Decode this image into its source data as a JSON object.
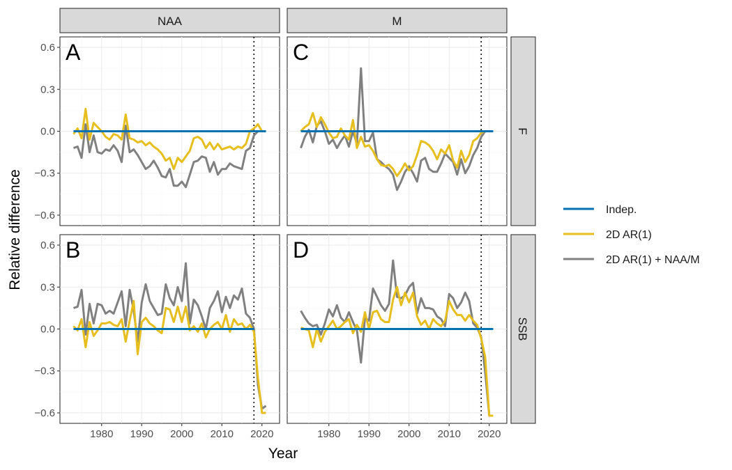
{
  "chart_data": {
    "type": "line",
    "xlabel": "Year",
    "ylabel": "Relative difference",
    "xlim": [
      1971,
      2023
    ],
    "ylim": [
      -0.62,
      0.62
    ],
    "x_ticks": [
      1980,
      1990,
      2000,
      2010,
      2020
    ],
    "y_ticks": [
      -0.6,
      -0.3,
      0.0,
      0.3,
      0.6
    ],
    "y_tick_labels": [
      "−0.6",
      "−0.3",
      "0.0",
      "0.3",
      "0.6"
    ],
    "grid": true,
    "reference_year": 2018,
    "column_strips": [
      "NAA",
      "M"
    ],
    "row_strips": [
      "F",
      "SSB"
    ],
    "legend": {
      "position": "right"
    },
    "series_meta": [
      {
        "name": "Indep.",
        "color": "#0072B2"
      },
      {
        "name": "2D AR(1)",
        "color": "#E6BE1E"
      },
      {
        "name": "2D AR(1) + NAA/M",
        "color": "#808080"
      }
    ],
    "panels": [
      {
        "label": "A",
        "column": "NAA",
        "row": "F",
        "series": [
          {
            "name": "Indep.",
            "x": [
              1973,
              2021
            ],
            "y": [
              0,
              0
            ]
          },
          {
            "name": "2D AR(1)",
            "x": [
              1973,
              1974,
              1975,
              1976,
              1977,
              1978,
              1979,
              1980,
              1981,
              1982,
              1983,
              1984,
              1985,
              1986,
              1987,
              1988,
              1989,
              1990,
              1991,
              1992,
              1993,
              1994,
              1995,
              1996,
              1997,
              1998,
              1999,
              2000,
              2001,
              2002,
              2003,
              2004,
              2005,
              2006,
              2007,
              2008,
              2009,
              2010,
              2011,
              2012,
              2013,
              2014,
              2015,
              2016,
              2017,
              2018,
              2019,
              2020,
              2021
            ],
            "y": [
              -0.02,
              0.02,
              -0.05,
              0.16,
              -0.06,
              0.06,
              0.03,
              0.0,
              -0.04,
              -0.06,
              -0.02,
              -0.03,
              -0.06,
              0.12,
              -0.05,
              -0.06,
              -0.08,
              -0.07,
              -0.1,
              -0.08,
              -0.11,
              -0.13,
              -0.16,
              -0.21,
              -0.19,
              -0.27,
              -0.19,
              -0.22,
              -0.18,
              -0.14,
              -0.05,
              -0.04,
              -0.06,
              -0.12,
              -0.08,
              -0.13,
              -0.09,
              -0.13,
              -0.12,
              -0.11,
              -0.13,
              -0.11,
              -0.12,
              -0.09,
              0.0,
              0.02,
              0.05,
              0.0,
              0.0
            ]
          },
          {
            "name": "2D AR(1) + NAA/M",
            "x": [
              1973,
              1974,
              1975,
              1976,
              1977,
              1978,
              1979,
              1980,
              1981,
              1982,
              1983,
              1984,
              1985,
              1986,
              1987,
              1988,
              1989,
              1990,
              1991,
              1992,
              1993,
              1994,
              1995,
              1996,
              1997,
              1998,
              1999,
              2000,
              2001,
              2002,
              2003,
              2004,
              2005,
              2006,
              2007,
              2008,
              2009,
              2010,
              2011,
              2012,
              2013,
              2014,
              2015,
              2016,
              2017,
              2018,
              2019,
              2020,
              2021
            ],
            "y": [
              -0.12,
              -0.11,
              -0.19,
              0.05,
              -0.15,
              -0.03,
              -0.15,
              -0.16,
              -0.13,
              -0.14,
              -0.1,
              -0.14,
              -0.22,
              0.04,
              -0.15,
              -0.13,
              -0.17,
              -0.22,
              -0.27,
              -0.25,
              -0.21,
              -0.26,
              -0.32,
              -0.33,
              -0.27,
              -0.39,
              -0.39,
              -0.36,
              -0.4,
              -0.31,
              -0.22,
              -0.21,
              -0.18,
              -0.19,
              -0.29,
              -0.22,
              -0.31,
              -0.27,
              -0.27,
              -0.23,
              -0.25,
              -0.26,
              -0.27,
              -0.14,
              -0.12,
              -0.03,
              0.0,
              0.0,
              0.0
            ]
          }
        ]
      },
      {
        "label": "B",
        "column": "NAA",
        "row": "SSB",
        "series": [
          {
            "name": "Indep.",
            "x": [
              1973,
              2018
            ],
            "y": [
              0,
              0
            ]
          },
          {
            "name": "2D AR(1)",
            "x": [
              1973,
              1974,
              1975,
              1976,
              1977,
              1978,
              1979,
              1980,
              1981,
              1982,
              1983,
              1984,
              1985,
              1986,
              1987,
              1988,
              1989,
              1990,
              1991,
              1992,
              1993,
              1994,
              1995,
              1996,
              1997,
              1998,
              1999,
              2000,
              2001,
              2002,
              2003,
              2004,
              2005,
              2006,
              2007,
              2008,
              2009,
              2010,
              2011,
              2012,
              2013,
              2014,
              2015,
              2016,
              2017,
              2018,
              2019,
              2020,
              2021
            ],
            "y": [
              0.02,
              -0.01,
              0.07,
              -0.13,
              0.05,
              -0.05,
              -0.01,
              0.04,
              0.04,
              0.05,
              0.03,
              0.02,
              0.07,
              -0.09,
              0.06,
              0.2,
              -0.18,
              0.05,
              0.08,
              0.04,
              0.02,
              -0.01,
              -0.03,
              0.15,
              0.14,
              0.05,
              0.16,
              0.05,
              0.16,
              -0.01,
              0.02,
              -0.02,
              0.04,
              -0.06,
              0.0,
              0.03,
              0.05,
              0.0,
              0.1,
              -0.02,
              0.07,
              0.03,
              0.04,
              0.0,
              0.03,
              -0.02,
              -0.35,
              -0.6,
              -0.6
            ]
          },
          {
            "name": "2D AR(1) + NAA/M",
            "x": [
              1973,
              1974,
              1975,
              1976,
              1977,
              1978,
              1979,
              1980,
              1981,
              1982,
              1983,
              1984,
              1985,
              1986,
              1987,
              1988,
              1989,
              1990,
              1991,
              1992,
              1993,
              1994,
              1995,
              1996,
              1997,
              1998,
              1999,
              2000,
              2001,
              2002,
              2003,
              2004,
              2005,
              2006,
              2007,
              2008,
              2009,
              2010,
              2011,
              2012,
              2013,
              2014,
              2015,
              2016,
              2017,
              2018,
              2019,
              2020,
              2021
            ],
            "y": [
              0.15,
              0.16,
              0.28,
              -0.04,
              0.18,
              0.04,
              0.18,
              0.17,
              0.11,
              0.13,
              0.11,
              0.19,
              0.27,
              0.02,
              0.28,
              0.13,
              -0.09,
              0.19,
              0.32,
              0.2,
              0.15,
              0.1,
              0.11,
              0.32,
              0.22,
              0.17,
              0.3,
              0.2,
              0.47,
              0.04,
              0.21,
              0.17,
              0.09,
              0.0,
              0.15,
              0.2,
              0.27,
              0.12,
              0.23,
              0.15,
              0.24,
              0.21,
              0.29,
              0.11,
              0.08,
              0.0,
              -0.4,
              -0.57,
              -0.55
            ]
          }
        ]
      },
      {
        "label": "C",
        "column": "M",
        "row": "F",
        "series": [
          {
            "name": "Indep.",
            "x": [
              1973,
              2021
            ],
            "y": [
              0,
              0
            ]
          },
          {
            "name": "2D AR(1)",
            "x": [
              1973,
              1974,
              1975,
              1976,
              1977,
              1978,
              1979,
              1980,
              1981,
              1982,
              1983,
              1984,
              1985,
              1986,
              1987,
              1988,
              1989,
              1990,
              1991,
              1992,
              1993,
              1994,
              1995,
              1996,
              1997,
              1998,
              1999,
              2000,
              2001,
              2002,
              2003,
              2004,
              2005,
              2006,
              2007,
              2008,
              2009,
              2010,
              2011,
              2012,
              2013,
              2014,
              2015,
              2016,
              2017,
              2018,
              2019,
              2020,
              2021
            ],
            "y": [
              0.0,
              0.03,
              0.05,
              0.13,
              0.03,
              0.1,
              0.05,
              -0.01,
              -0.05,
              -0.04,
              0.02,
              -0.03,
              -0.06,
              0.08,
              -0.12,
              -0.04,
              -0.11,
              -0.1,
              -0.14,
              -0.2,
              -0.24,
              -0.25,
              -0.24,
              -0.27,
              -0.32,
              -0.28,
              -0.23,
              -0.28,
              -0.25,
              -0.17,
              -0.07,
              -0.08,
              -0.1,
              -0.14,
              -0.2,
              -0.13,
              -0.16,
              -0.1,
              -0.21,
              -0.26,
              -0.14,
              -0.22,
              -0.17,
              -0.07,
              -0.05,
              -0.01,
              0.0,
              0.0,
              0.0
            ]
          },
          {
            "name": "2D AR(1) + NAA/M",
            "x": [
              1973,
              1974,
              1975,
              1976,
              1977,
              1978,
              1979,
              1980,
              1981,
              1982,
              1983,
              1984,
              1985,
              1986,
              1987,
              1988,
              1989,
              1990,
              1991,
              1992,
              1993,
              1994,
              1995,
              1996,
              1997,
              1998,
              1999,
              2000,
              2001,
              2002,
              2003,
              2004,
              2005,
              2006,
              2007,
              2008,
              2009,
              2010,
              2011,
              2012,
              2013,
              2014,
              2015,
              2016,
              2017,
              2018,
              2019,
              2020,
              2021
            ],
            "y": [
              -0.12,
              -0.04,
              0.01,
              -0.08,
              0.04,
              0.07,
              0.0,
              -0.09,
              -0.06,
              -0.12,
              -0.07,
              -0.03,
              -0.11,
              0.0,
              -0.09,
              0.45,
              -0.07,
              -0.07,
              -0.01,
              -0.2,
              -0.22,
              -0.25,
              -0.27,
              -0.31,
              -0.42,
              -0.36,
              -0.29,
              -0.25,
              -0.3,
              -0.36,
              -0.21,
              -0.19,
              -0.27,
              -0.29,
              -0.29,
              -0.23,
              -0.16,
              -0.19,
              -0.22,
              -0.31,
              -0.2,
              -0.3,
              -0.25,
              -0.17,
              -0.12,
              -0.04,
              0.0,
              0.0,
              0.0
            ]
          }
        ]
      },
      {
        "label": "D",
        "column": "M",
        "row": "SSB",
        "series": [
          {
            "name": "Indep.",
            "x": [
              1973,
              2021
            ],
            "y": [
              0,
              0
            ]
          },
          {
            "name": "2D AR(1)",
            "x": [
              1973,
              1974,
              1975,
              1976,
              1977,
              1978,
              1979,
              1980,
              1981,
              1982,
              1983,
              1984,
              1985,
              1986,
              1987,
              1988,
              1989,
              1990,
              1991,
              1992,
              1993,
              1994,
              1995,
              1996,
              1997,
              1998,
              1999,
              2000,
              2001,
              2002,
              2003,
              2004,
              2005,
              2006,
              2007,
              2008,
              2009,
              2010,
              2011,
              2012,
              2013,
              2014,
              2015,
              2016,
              2017,
              2018,
              2019,
              2020,
              2021
            ],
            "y": [
              0.01,
              0.0,
              -0.01,
              -0.13,
              0.0,
              -0.09,
              -0.02,
              0.02,
              0.06,
              0.0,
              0.02,
              0.05,
              0.07,
              -0.03,
              0.03,
              -0.02,
              0.12,
              0.0,
              0.12,
              0.13,
              0.07,
              0.05,
              0.05,
              0.21,
              0.3,
              0.17,
              0.26,
              0.19,
              0.26,
              0.09,
              0.03,
              0.06,
              0.0,
              0.07,
              0.04,
              0.02,
              0.06,
              0.2,
              0.14,
              0.1,
              0.1,
              0.06,
              0.1,
              0.06,
              0.03,
              -0.07,
              -0.2,
              -0.62,
              -0.62
            ]
          },
          {
            "name": "2D AR(1) + NAA/M",
            "x": [
              1973,
              1974,
              1975,
              1976,
              1977,
              1978,
              1979,
              1980,
              1981,
              1982,
              1983,
              1984,
              1985,
              1986,
              1987,
              1988,
              1989,
              1990,
              1991,
              1992,
              1993,
              1994,
              1995,
              1996,
              1997,
              1998,
              1999,
              2000,
              2001,
              2002,
              2003,
              2004,
              2005,
              2006,
              2007,
              2008,
              2009,
              2010,
              2011,
              2012,
              2013,
              2014,
              2015,
              2016,
              2017,
              2018,
              2019,
              2020,
              2021
            ],
            "y": [
              0.13,
              0.08,
              0.04,
              0.02,
              0.03,
              -0.04,
              0.04,
              0.14,
              0.09,
              0.17,
              0.08,
              0.05,
              0.12,
              0.05,
              -0.01,
              -0.24,
              0.08,
              0.06,
              0.29,
              0.23,
              0.17,
              0.13,
              0.18,
              0.49,
              0.23,
              0.22,
              0.24,
              0.3,
              0.33,
              0.11,
              0.22,
              0.15,
              0.15,
              0.14,
              0.09,
              0.07,
              0.02,
              0.25,
              0.22,
              0.15,
              0.19,
              0.26,
              0.2,
              0.04,
              0.01,
              -0.06,
              -0.31,
              -0.62,
              -0.62
            ]
          }
        ]
      }
    ]
  }
}
